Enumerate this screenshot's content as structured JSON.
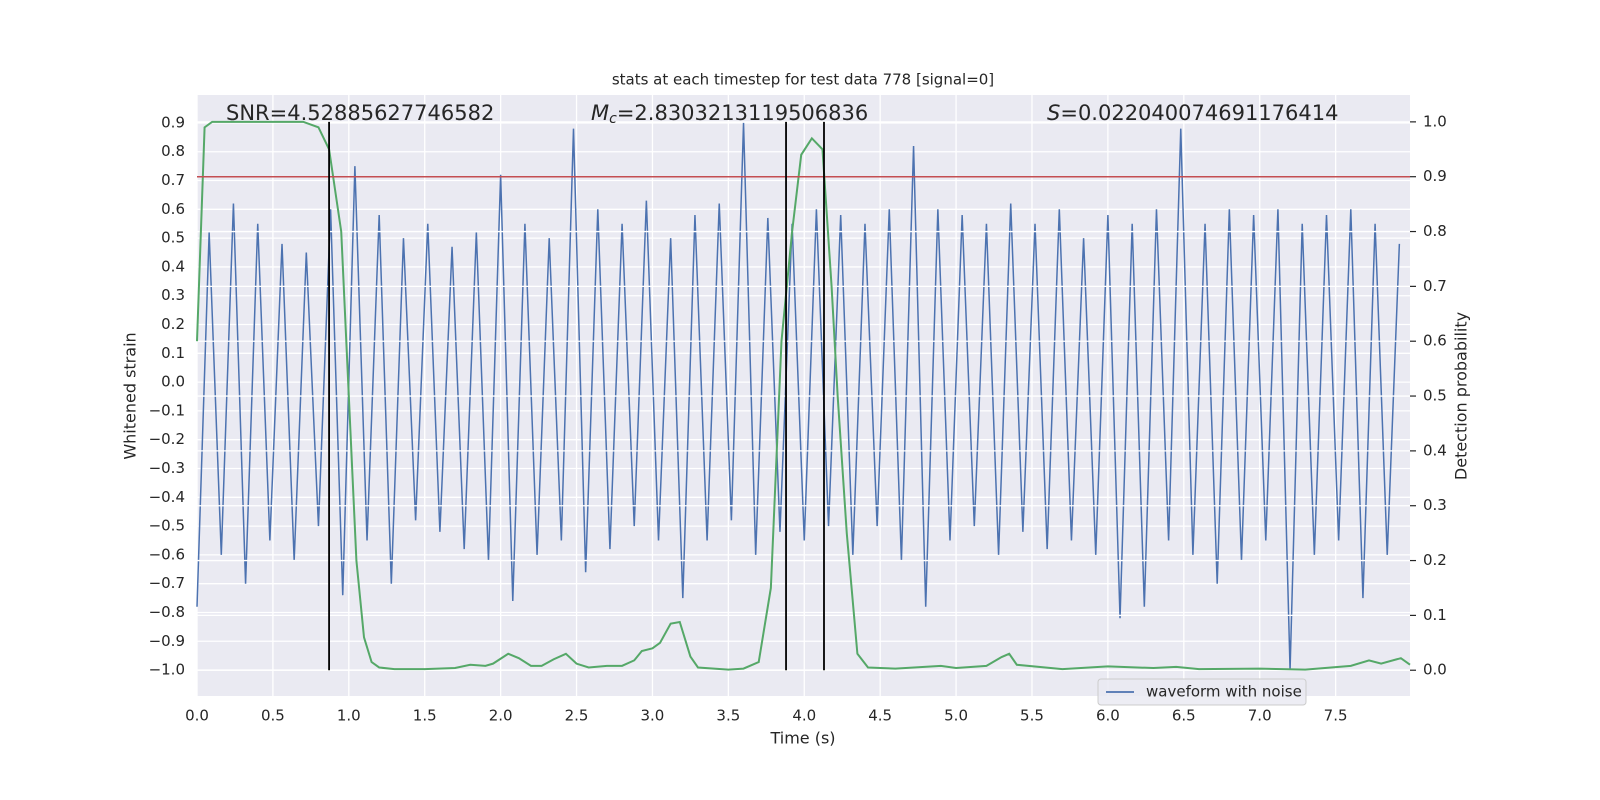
{
  "chart_data": {
    "type": "line",
    "title": "stats at each timestep for test data 778 [signal=0]",
    "xlabel": "Time (s)",
    "ylabel": "Whitened strain",
    "y2label": "Detection probability",
    "xlim": [
      0,
      7.99
    ],
    "xticks": [
      {
        "value": 0,
        "label": "0.0"
      },
      0.5,
      {
        "value": 1,
        "label": "1.0"
      },
      1.5,
      {
        "value": 2,
        "label": "2.0"
      },
      2.5,
      {
        "value": 3,
        "label": "3.0"
      },
      3.5,
      {
        "value": 4,
        "label": "4.0"
      },
      4.5,
      {
        "value": 5,
        "label": "5.0"
      },
      5.5,
      {
        "value": 6,
        "label": "6.0"
      },
      6.5,
      {
        "value": 7,
        "label": "7.0"
      },
      7.5
    ],
    "ylim": [
      -1.09,
      0.997
    ],
    "yticks": [
      {
        "value": -1,
        "label": "−1.0"
      },
      {
        "value": -0.9,
        "label": "−0.9"
      },
      {
        "value": -0.8,
        "label": "−0.8"
      },
      {
        "value": -0.7,
        "label": "−0.7"
      },
      {
        "value": -0.6,
        "label": "−0.6"
      },
      {
        "value": -0.5,
        "label": "−0.5"
      },
      {
        "value": -0.4,
        "label": "−0.4"
      },
      {
        "value": -0.3,
        "label": "−0.3"
      },
      {
        "value": -0.2,
        "label": "−0.2"
      },
      {
        "value": -0.1,
        "label": "−0.1"
      },
      {
        "value": 0,
        "label": "0.0"
      },
      0.1,
      0.2,
      0.3,
      0.4,
      0.5,
      0.6,
      0.7,
      0.8,
      0.9
    ],
    "y2lim": [
      -0.047,
      1.049
    ],
    "y2ticks": [
      {
        "value": 0,
        "label": "0.0"
      },
      0.1,
      0.2,
      0.3,
      0.4,
      0.5,
      0.6,
      0.7,
      0.8,
      0.9,
      {
        "value": 1,
        "label": "1.0"
      }
    ],
    "grid": true,
    "legend": "lower right",
    "series": [
      {
        "name": "waveform with noise",
        "color": "#4c72b0",
        "x": [
          0,
          0.08,
          0.16,
          0.24,
          0.32,
          0.4,
          0.48,
          0.56,
          0.64,
          0.72,
          0.8,
          0.88,
          0.96,
          1.04,
          1.12,
          1.2,
          1.28,
          1.36,
          1.44,
          1.52,
          1.6,
          1.68,
          1.76,
          1.84,
          1.92,
          2,
          2.08,
          2.16,
          2.24,
          2.32,
          2.4,
          2.48,
          2.56,
          2.64,
          2.72,
          2.8,
          2.88,
          2.96,
          3.04,
          3.12,
          3.2,
          3.28,
          3.36,
          3.44,
          3.52,
          3.6,
          3.68,
          3.76,
          3.84,
          3.92,
          4,
          4.08,
          4.16,
          4.24,
          4.32,
          4.4,
          4.48,
          4.56,
          4.64,
          4.72,
          4.8,
          4.88,
          4.96,
          5.04,
          5.12,
          5.2,
          5.28,
          5.36,
          5.44,
          5.52,
          5.6,
          5.68,
          5.76,
          5.84,
          5.92,
          6,
          6.08,
          6.16,
          6.24,
          6.32,
          6.4,
          6.48,
          6.56,
          6.64,
          6.72,
          6.8,
          6.88,
          6.96,
          7.04,
          7.12,
          7.2,
          7.28,
          7.36,
          7.44,
          7.52,
          7.6,
          7.68,
          7.76,
          7.84,
          7.92
        ],
        "values": [
          -0.78,
          0.52,
          -0.6,
          0.62,
          -0.7,
          0.55,
          -0.55,
          0.48,
          -0.62,
          0.45,
          -0.5,
          0.6,
          -0.74,
          0.75,
          -0.55,
          0.58,
          -0.7,
          0.5,
          -0.48,
          0.55,
          -0.52,
          0.47,
          -0.58,
          0.52,
          -0.62,
          0.72,
          -0.76,
          0.55,
          -0.6,
          0.5,
          -0.55,
          0.88,
          -0.66,
          0.6,
          -0.58,
          0.55,
          -0.5,
          0.63,
          -0.55,
          0.5,
          -0.75,
          0.58,
          -0.55,
          0.62,
          -0.48,
          0.9,
          -0.6,
          0.57,
          -0.52,
          0.55,
          -0.55,
          0.6,
          -0.5,
          0.58,
          -0.6,
          0.55,
          -0.5,
          0.6,
          -0.62,
          0.82,
          -0.78,
          0.6,
          -0.55,
          0.58,
          -0.5,
          0.55,
          -0.6,
          0.62,
          -0.52,
          0.55,
          -0.58,
          0.6,
          -0.55,
          0.5,
          -0.6,
          0.58,
          -0.82,
          0.55,
          -0.78,
          0.6,
          -0.55,
          0.88,
          -0.6,
          0.55,
          -0.7,
          0.6,
          -0.62,
          0.58,
          -0.55,
          0.6,
          -1.0,
          0.55,
          -0.6,
          0.58,
          -0.55,
          0.6,
          -0.75,
          0.55,
          -0.6,
          0.48
        ]
      },
      {
        "color": "#55a868",
        "axis": "y2",
        "x": [
          0,
          0.05,
          0.1,
          0.2,
          0.3,
          0.4,
          0.5,
          0.6,
          0.7,
          0.8,
          0.87,
          0.95,
          1.0,
          1.05,
          1.1,
          1.15,
          1.2,
          1.3,
          1.5,
          1.7,
          1.8,
          1.9,
          1.95,
          2.05,
          2.12,
          2.2,
          2.27,
          2.35,
          2.43,
          2.5,
          2.58,
          2.7,
          2.8,
          2.88,
          2.93,
          3.0,
          3.05,
          3.12,
          3.18,
          3.25,
          3.3,
          3.5,
          3.6,
          3.7,
          3.78,
          3.85,
          3.92,
          3.98,
          4.05,
          4.12,
          4.18,
          4.22,
          4.28,
          4.35,
          4.42,
          4.6,
          4.9,
          5.0,
          5.2,
          5.3,
          5.35,
          5.4,
          5.7,
          6.0,
          6.3,
          6.45,
          6.6,
          7.0,
          7.3,
          7.6,
          7.72,
          7.8,
          7.93,
          7.99
        ],
        "values": [
          0.6,
          0.99,
          1.0,
          1.0,
          1.0,
          1.0,
          1.0,
          1.0,
          1.0,
          0.99,
          0.95,
          0.8,
          0.5,
          0.2,
          0.06,
          0.015,
          0.005,
          0.002,
          0.002,
          0.004,
          0.01,
          0.008,
          0.012,
          0.03,
          0.022,
          0.008,
          0.008,
          0.02,
          0.03,
          0.012,
          0.005,
          0.008,
          0.008,
          0.018,
          0.035,
          0.04,
          0.05,
          0.085,
          0.088,
          0.025,
          0.005,
          0.001,
          0.003,
          0.015,
          0.15,
          0.6,
          0.8,
          0.94,
          0.97,
          0.95,
          0.7,
          0.5,
          0.25,
          0.03,
          0.005,
          0.003,
          0.008,
          0.004,
          0.008,
          0.024,
          0.03,
          0.01,
          0.002,
          0.007,
          0.004,
          0.006,
          0.002,
          0.003,
          0.001,
          0.008,
          0.018,
          0.012,
          0.022,
          0.01
        ]
      }
    ],
    "threshold": {
      "value": 0.9,
      "axis": "y2",
      "color": "#c44e52"
    },
    "vlines": {
      "x": [
        0.87,
        3.88,
        4.13
      ],
      "color": "#000000"
    },
    "annotations": [
      {
        "text": "SNR=4.52885627746582"
      },
      {
        "symbol": "M",
        "subscript": "c",
        "text": "=2.8303213119506836"
      },
      {
        "symbol": "S",
        "text": "=0.022040074691176414"
      }
    ]
  }
}
